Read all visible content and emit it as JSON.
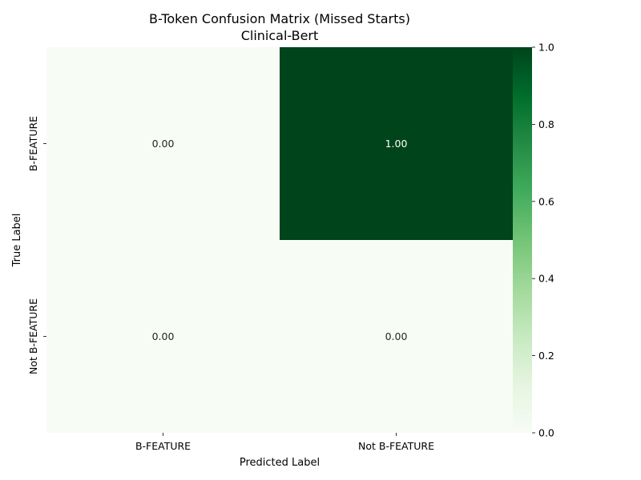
{
  "chart_data": {
    "type": "heatmap",
    "title": "B-Token Confusion Matrix (Missed Starts)",
    "subtitle": "Clinical-Bert",
    "xlabel": "Predicted Label",
    "ylabel": "True Label",
    "x_categories": [
      "B-FEATURE",
      "Not B-FEATURE"
    ],
    "y_categories": [
      "B-FEATURE",
      "Not B-FEATURE"
    ],
    "values": [
      [
        0.0,
        1.0
      ],
      [
        0.0,
        0.0
      ]
    ],
    "cell_labels": [
      [
        "0.00",
        "1.00"
      ],
      [
        "0.00",
        "0.00"
      ]
    ],
    "colorbar": {
      "range": [
        0.0,
        1.0
      ],
      "ticks": [
        0.0,
        0.2,
        0.4,
        0.6,
        0.8,
        1.0
      ],
      "tick_labels": [
        "0.0",
        "0.2",
        "0.4",
        "0.6",
        "0.8",
        "1.0"
      ],
      "colormap": "Greens",
      "low_color": "#f7fcf5",
      "high_color": "#00441b"
    },
    "grid": false,
    "legend": "colorbar-right"
  }
}
